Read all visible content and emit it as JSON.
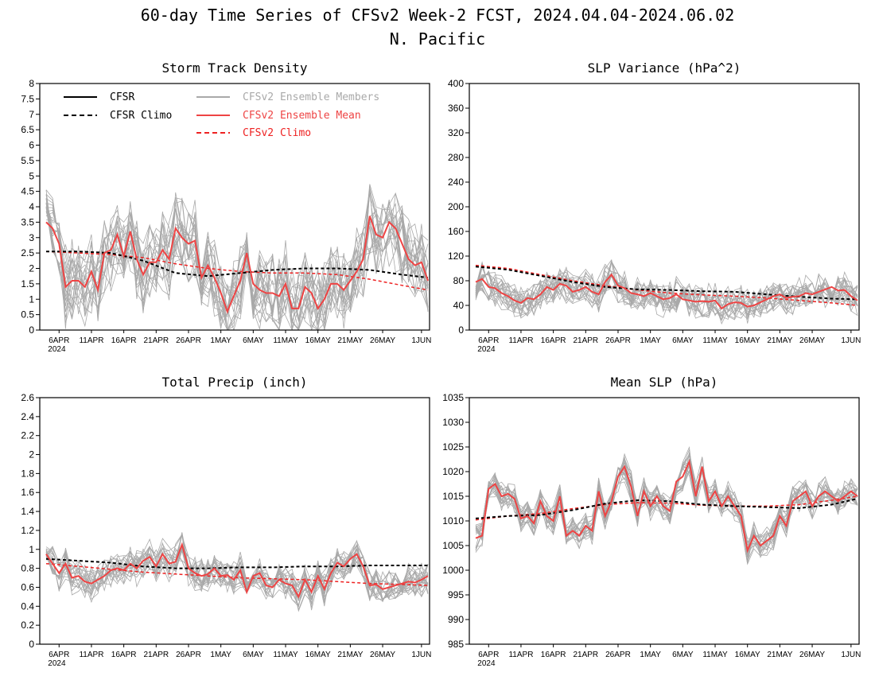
{
  "title_line1": "60-day Time Series of CFSv2 Week-2 FCST, 2024.04.04-2024.06.02",
  "title_line2": "N. Pacific",
  "colors": {
    "cfsr": "#000000",
    "members": "#a9a9a9",
    "mean": "#ee4444",
    "climo_cfsv2": "#ee2222"
  },
  "x_ticks": [
    "6APR",
    "11APR",
    "16APR",
    "21APR",
    "26APR",
    "1MAY",
    "6MAY",
    "11MAY",
    "16MAY",
    "21MAY",
    "26MAY",
    "1JUN"
  ],
  "x_tick_days": [
    2,
    7,
    12,
    17,
    22,
    27,
    32,
    37,
    42,
    47,
    52,
    58
  ],
  "x_year": "2024",
  "legend": {
    "cfsr": "CFSR",
    "cfsr_climo": "CFSR Climo",
    "members": "CFSv2 Ensemble Members",
    "mean": "CFSv2 Ensemble Mean",
    "cfsv2_climo": "CFSv2 Climo"
  },
  "chart_data": [
    {
      "type": "line",
      "title": "Storm Track Density",
      "ylim": [
        0,
        8
      ],
      "y_ticks": [
        "0",
        "0.5",
        "1",
        "1.5",
        "2",
        "2.5",
        "3",
        "3.5",
        "4",
        "4.5",
        "5",
        "5.5",
        "6",
        "6.5",
        "7",
        "7.5",
        "8"
      ],
      "x_days": [
        0,
        59
      ],
      "series": [
        {
          "name": "CFSR Climo",
          "x": [
            0,
            5,
            10,
            15,
            20,
            25,
            30,
            35,
            40,
            45,
            50,
            55,
            59
          ],
          "values": [
            2.55,
            2.55,
            2.5,
            2.25,
            1.85,
            1.75,
            1.85,
            1.95,
            2.0,
            2.0,
            1.95,
            1.8,
            1.7
          ]
        },
        {
          "name": "CFSv2 Climo",
          "x": [
            0,
            5,
            10,
            15,
            20,
            25,
            30,
            35,
            40,
            45,
            50,
            55,
            59
          ],
          "values": [
            2.55,
            2.5,
            2.45,
            2.35,
            2.15,
            2.0,
            1.9,
            1.85,
            1.85,
            1.8,
            1.65,
            1.45,
            1.3
          ]
        },
        {
          "name": "CFSv2 Ensemble Mean",
          "x": [
            0,
            1,
            2,
            3,
            4,
            5,
            6,
            7,
            8,
            9,
            10,
            11,
            12,
            13,
            14,
            15,
            16,
            17,
            18,
            19,
            20,
            21,
            22,
            23,
            24,
            25,
            26,
            27,
            28,
            29,
            30,
            31,
            32,
            33,
            34,
            35,
            36,
            37,
            38,
            39,
            40,
            41,
            42,
            43,
            44,
            45,
            46,
            47,
            48,
            49,
            50,
            51,
            52,
            53,
            54,
            55,
            56,
            57,
            58,
            59
          ],
          "values": [
            3.5,
            3.3,
            2.8,
            1.4,
            1.6,
            1.6,
            1.4,
            1.9,
            1.3,
            2.5,
            2.6,
            3.1,
            2.4,
            3.2,
            2.3,
            1.8,
            2.2,
            2.2,
            2.6,
            2.3,
            3.3,
            3.0,
            2.8,
            2.9,
            1.7,
            2.1,
            1.7,
            1.2,
            0.6,
            1.1,
            1.6,
            2.5,
            1.5,
            1.3,
            1.2,
            1.2,
            1.1,
            1.5,
            0.7,
            0.7,
            1.4,
            1.2,
            0.7,
            1.0,
            1.5,
            1.5,
            1.3,
            1.6,
            1.9,
            2.3,
            3.7,
            3.1,
            3.0,
            3.5,
            3.3,
            2.8,
            2.3,
            2.1,
            2.2,
            1.6
          ]
        }
      ]
    },
    {
      "type": "line",
      "title": "SLP Variance (hPa^2)",
      "ylim": [
        0,
        400
      ],
      "y_ticks": [
        "0",
        "40",
        "80",
        "120",
        "160",
        "200",
        "240",
        "280",
        "320",
        "360",
        "400"
      ],
      "x_days": [
        0,
        59
      ],
      "series": [
        {
          "name": "CFSR Climo",
          "x": [
            0,
            5,
            10,
            15,
            20,
            25,
            30,
            35,
            40,
            45,
            50,
            55,
            59
          ],
          "values": [
            103,
            98,
            88,
            78,
            70,
            66,
            65,
            63,
            62,
            58,
            54,
            51,
            50
          ]
        },
        {
          "name": "CFSv2 Climo",
          "x": [
            0,
            5,
            10,
            15,
            20,
            25,
            30,
            35,
            40,
            45,
            50,
            55,
            59
          ],
          "values": [
            105,
            100,
            90,
            80,
            72,
            65,
            60,
            57,
            55,
            52,
            48,
            44,
            40
          ]
        },
        {
          "name": "CFSv2 Ensemble Mean",
          "x": [
            0,
            1,
            2,
            3,
            4,
            5,
            6,
            7,
            8,
            9,
            10,
            11,
            12,
            13,
            14,
            15,
            16,
            17,
            18,
            19,
            20,
            21,
            22,
            23,
            24,
            25,
            26,
            27,
            28,
            29,
            30,
            31,
            32,
            33,
            34,
            35,
            36,
            37,
            38,
            39,
            40,
            41,
            42,
            43,
            44,
            45,
            46,
            47,
            48,
            49,
            50,
            51,
            52,
            53,
            54,
            55,
            56,
            57,
            58,
            59
          ],
          "values": [
            78,
            83,
            70,
            68,
            60,
            55,
            48,
            44,
            52,
            50,
            58,
            70,
            65,
            75,
            72,
            62,
            65,
            70,
            62,
            58,
            78,
            90,
            72,
            68,
            60,
            58,
            55,
            60,
            55,
            50,
            52,
            58,
            50,
            48,
            46,
            47,
            46,
            48,
            35,
            42,
            45,
            44,
            38,
            40,
            45,
            50,
            55,
            58,
            52,
            54,
            55,
            60,
            58,
            62,
            66,
            70,
            64,
            65,
            55,
            48
          ]
        }
      ]
    },
    {
      "type": "line",
      "title": "Total Precip (inch)",
      "ylim": [
        0,
        2.6
      ],
      "y_ticks": [
        "0",
        "0.2",
        "0.4",
        "0.6",
        "0.8",
        "1",
        "1.2",
        "1.4",
        "1.6",
        "1.8",
        "2",
        "2.2",
        "2.4",
        "2.6"
      ],
      "x_days": [
        0,
        59
      ],
      "series": [
        {
          "name": "CFSR Climo",
          "x": [
            0,
            5,
            10,
            15,
            20,
            25,
            30,
            35,
            40,
            45,
            50,
            55,
            59
          ],
          "values": [
            0.9,
            0.88,
            0.86,
            0.82,
            0.8,
            0.8,
            0.81,
            0.81,
            0.82,
            0.82,
            0.83,
            0.83,
            0.83
          ]
        },
        {
          "name": "CFSv2 Climo",
          "x": [
            0,
            5,
            10,
            15,
            20,
            25,
            30,
            35,
            40,
            45,
            50,
            55,
            59
          ],
          "values": [
            0.85,
            0.82,
            0.79,
            0.76,
            0.74,
            0.72,
            0.7,
            0.69,
            0.68,
            0.66,
            0.64,
            0.63,
            0.62
          ]
        },
        {
          "name": "CFSv2 Ensemble Mean",
          "x": [
            0,
            1,
            2,
            3,
            4,
            5,
            6,
            7,
            8,
            9,
            10,
            11,
            12,
            13,
            14,
            15,
            16,
            17,
            18,
            19,
            20,
            21,
            22,
            23,
            24,
            25,
            26,
            27,
            28,
            29,
            30,
            31,
            32,
            33,
            34,
            35,
            36,
            37,
            38,
            39,
            40,
            41,
            42,
            43,
            44,
            45,
            46,
            47,
            48,
            49,
            50,
            51,
            52,
            53,
            54,
            55,
            56,
            57,
            58,
            59
          ],
          "values": [
            0.95,
            0.85,
            0.75,
            0.85,
            0.7,
            0.72,
            0.66,
            0.64,
            0.68,
            0.72,
            0.78,
            0.8,
            0.78,
            0.85,
            0.8,
            0.88,
            0.92,
            0.82,
            0.95,
            0.85,
            0.87,
            1.05,
            0.8,
            0.75,
            0.72,
            0.74,
            0.8,
            0.72,
            0.73,
            0.68,
            0.78,
            0.55,
            0.72,
            0.75,
            0.62,
            0.6,
            0.68,
            0.64,
            0.62,
            0.5,
            0.68,
            0.55,
            0.72,
            0.58,
            0.75,
            0.86,
            0.82,
            0.9,
            0.95,
            0.82,
            0.62,
            0.63,
            0.58,
            0.6,
            0.62,
            0.64,
            0.66,
            0.65,
            0.68,
            0.72
          ]
        }
      ]
    },
    {
      "type": "line",
      "title": "Mean SLP (hPa)",
      "ylim": [
        985,
        1035
      ],
      "y_ticks": [
        "985",
        "990",
        "995",
        "1000",
        "1005",
        "1010",
        "1015",
        "1020",
        "1025",
        "1030",
        "1035"
      ],
      "x_days": [
        0,
        59
      ],
      "series": [
        {
          "name": "CFSR Climo",
          "x": [
            0,
            5,
            10,
            15,
            20,
            25,
            30,
            35,
            40,
            45,
            50,
            55,
            59
          ],
          "values": [
            1010.5,
            1011,
            1011.2,
            1012.2,
            1013.5,
            1014.2,
            1014,
            1013.3,
            1013,
            1012.8,
            1012.6,
            1013.3,
            1014.5
          ]
        },
        {
          "name": "CFSv2 Climo",
          "x": [
            0,
            5,
            10,
            15,
            20,
            25,
            30,
            35,
            40,
            45,
            50,
            55,
            59
          ],
          "values": [
            1010.2,
            1011,
            1011.5,
            1012.5,
            1013.3,
            1013.7,
            1013.6,
            1013.2,
            1013,
            1013,
            1013.3,
            1014.2,
            1015
          ]
        },
        {
          "name": "CFSv2 Ensemble Mean",
          "x": [
            0,
            1,
            2,
            3,
            4,
            5,
            6,
            7,
            8,
            9,
            10,
            11,
            12,
            13,
            14,
            15,
            16,
            17,
            18,
            19,
            20,
            21,
            22,
            23,
            24,
            25,
            26,
            27,
            28,
            29,
            30,
            31,
            32,
            33,
            34,
            35,
            36,
            37,
            38,
            39,
            40,
            41,
            42,
            43,
            44,
            45,
            46,
            47,
            48,
            49,
            50,
            51,
            52,
            53,
            54,
            55,
            56,
            57,
            58,
            59
          ],
          "values": [
            1006.5,
            1007,
            1016.5,
            1017.5,
            1015,
            1015.5,
            1014.5,
            1010.5,
            1011,
            1009.5,
            1014,
            1011,
            1010,
            1015,
            1007,
            1008,
            1007,
            1009,
            1008,
            1016,
            1011,
            1014,
            1019,
            1021,
            1017,
            1011,
            1016,
            1013,
            1015,
            1013,
            1012,
            1018,
            1019,
            1022,
            1015,
            1021,
            1014,
            1016,
            1013,
            1015,
            1013,
            1011,
            1004,
            1007,
            1005,
            1006,
            1007,
            1011,
            1009,
            1014,
            1015,
            1016,
            1013,
            1015,
            1016,
            1015,
            1014,
            1015,
            1016,
            1015
          ]
        }
      ]
    }
  ]
}
